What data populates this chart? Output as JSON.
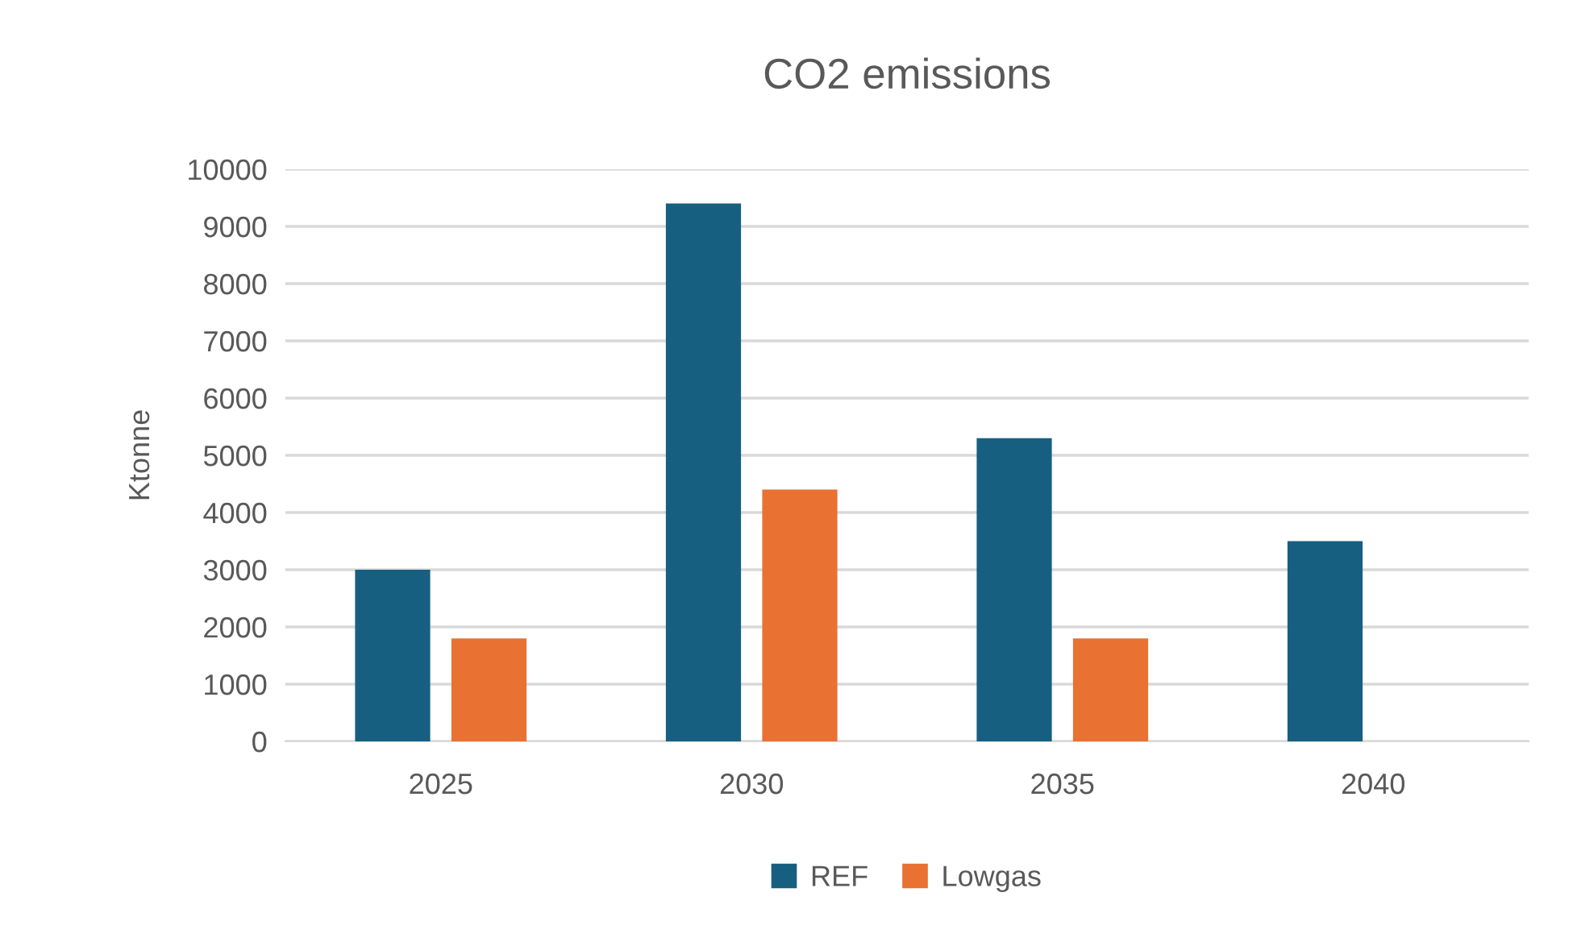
{
  "chart_data": {
    "type": "bar",
    "title": "CO2 emissions",
    "ylabel": "Ktonne",
    "categories": [
      "2025",
      "2030",
      "2035",
      "2040"
    ],
    "series": [
      {
        "name": "REF",
        "color": "#175f81",
        "values": [
          3000,
          9400,
          5300,
          3500
        ]
      },
      {
        "name": "Lowgas",
        "color": "#e97132",
        "values": [
          1800,
          4400,
          1800,
          null
        ]
      }
    ],
    "ylim": [
      0,
      10000
    ],
    "yticks": [
      0,
      1000,
      2000,
      3000,
      4000,
      5000,
      6000,
      7000,
      8000,
      9000,
      10000
    ],
    "grid": "y",
    "legend": "bottom"
  }
}
